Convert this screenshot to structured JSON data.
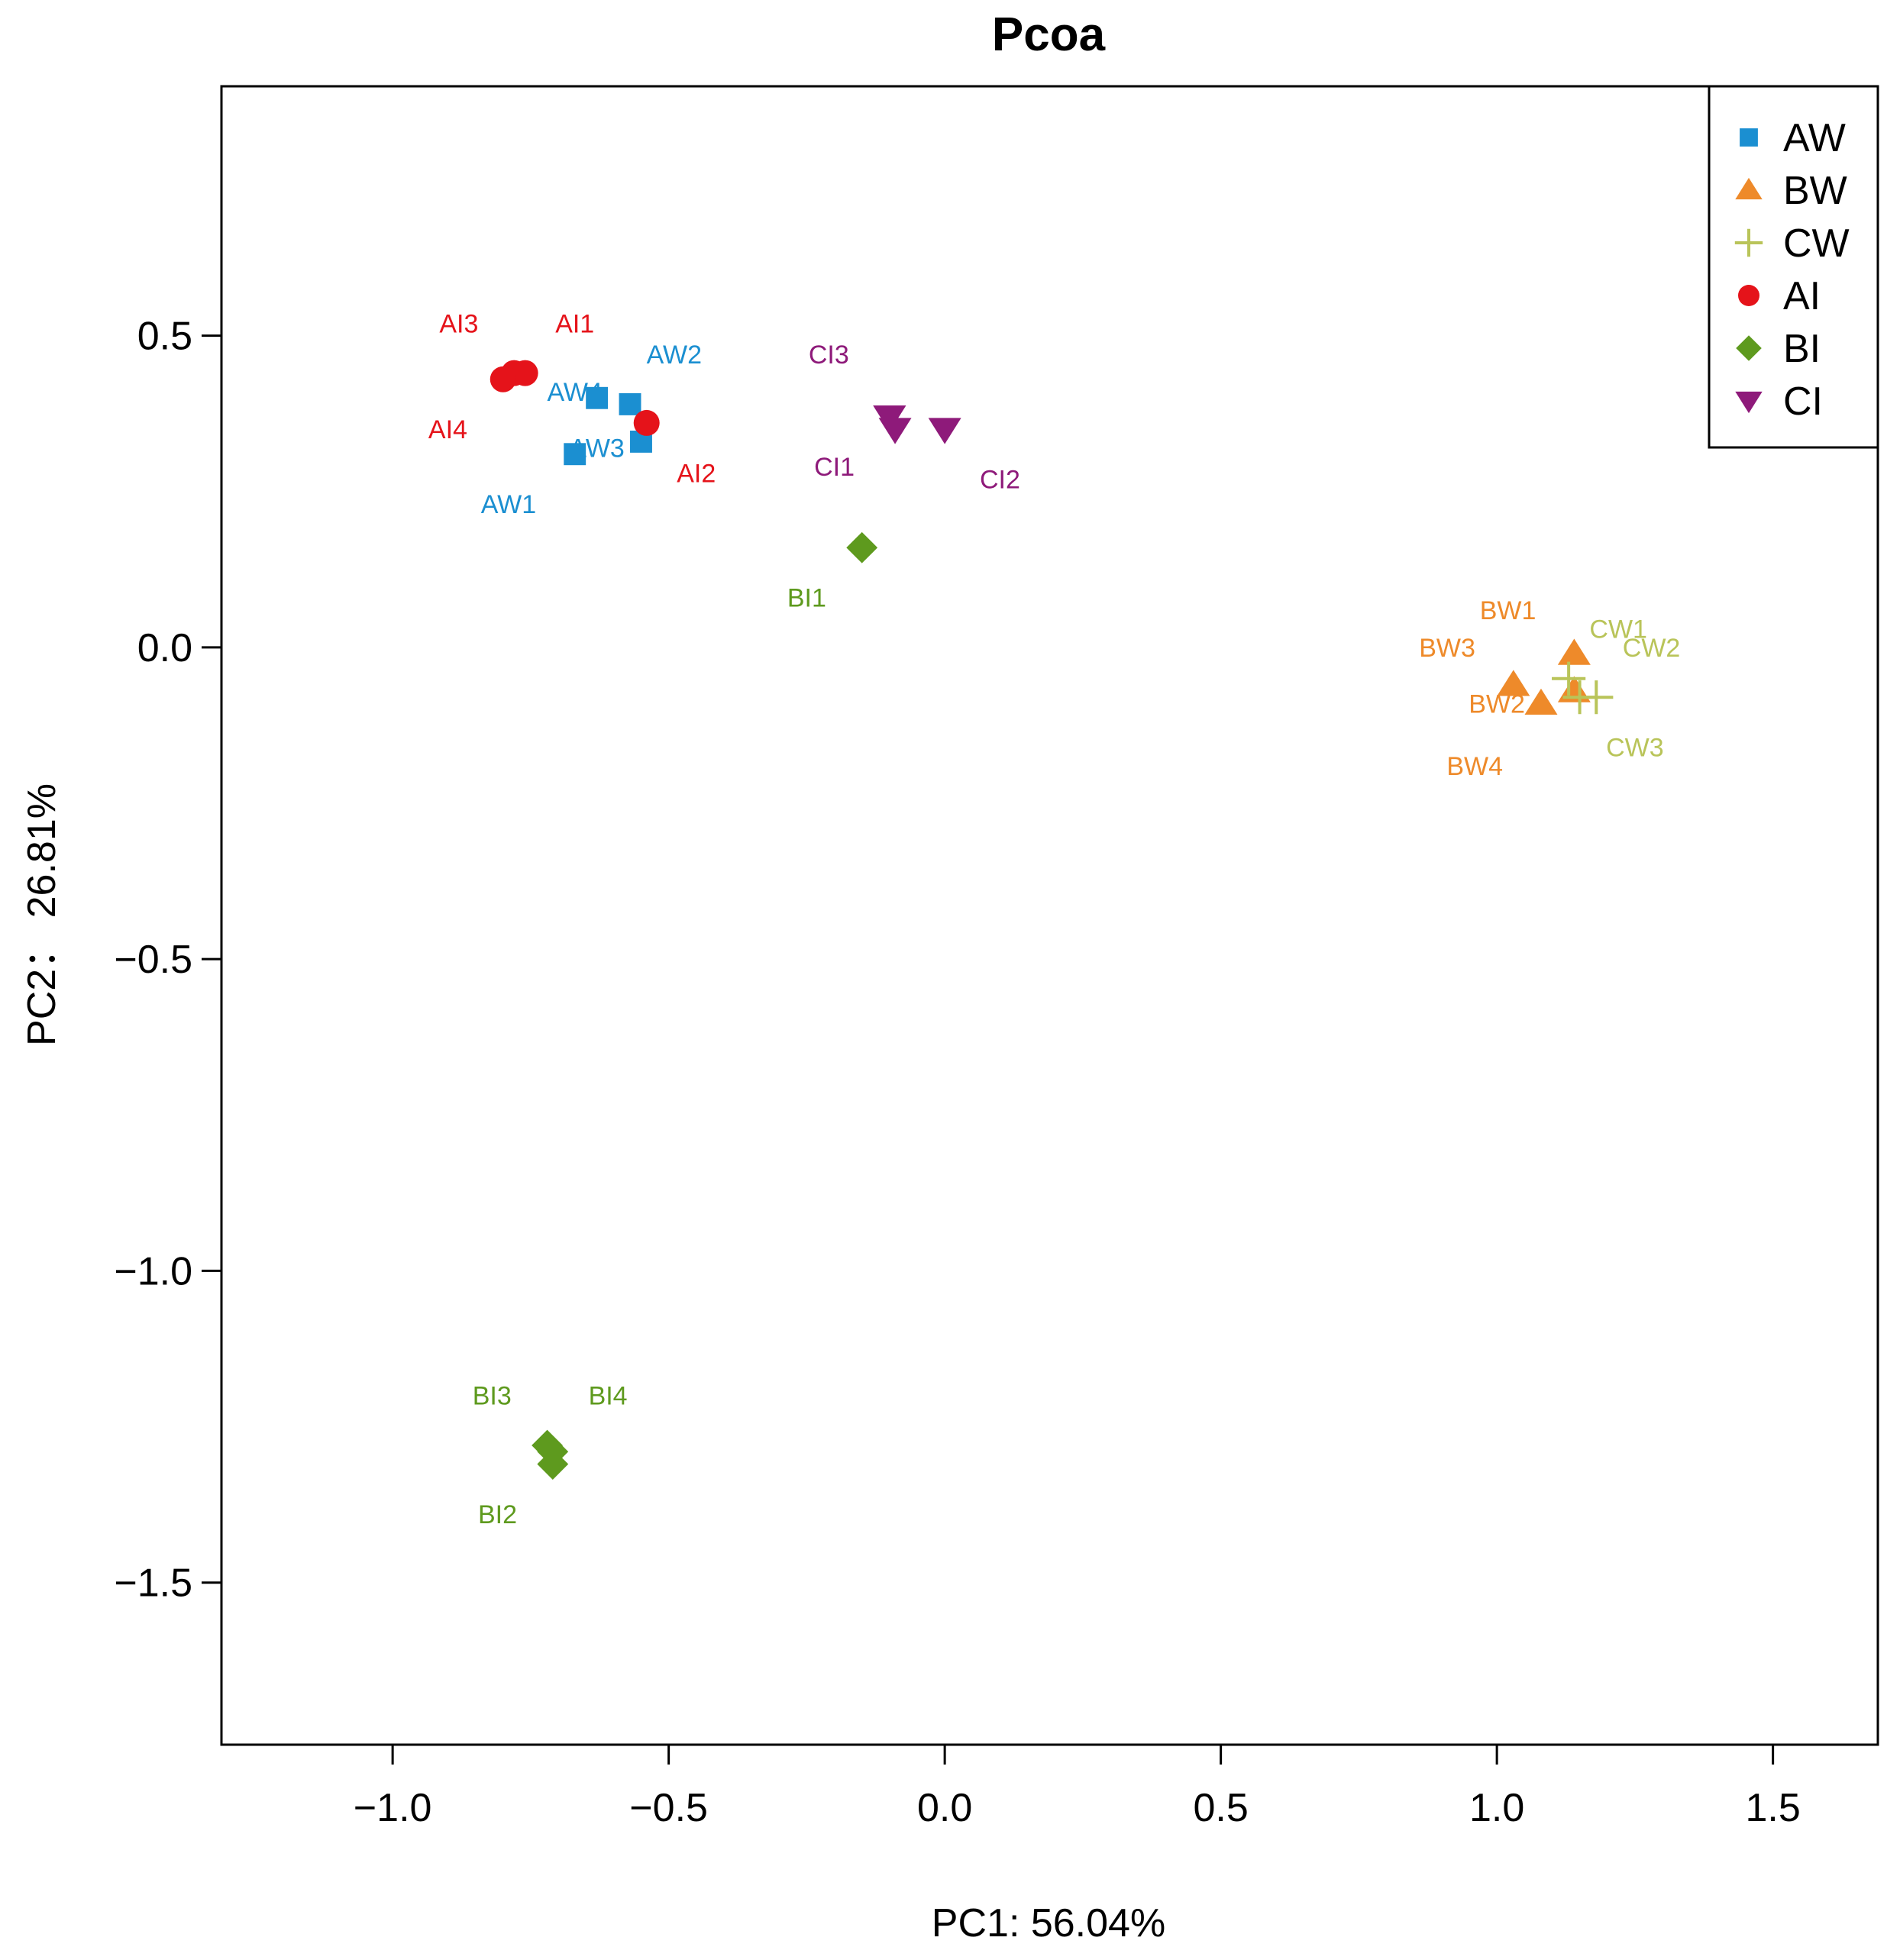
{
  "chart_data": {
    "type": "scatter",
    "title": "Pcoa",
    "xlabel": "PC1: 56.04%",
    "ylabel": "PC2： 26.81%",
    "xlim": [
      -1.31,
      1.69
    ],
    "ylim": [
      -1.76,
      0.9
    ],
    "x_ticks": [
      -1.0,
      -0.5,
      0.0,
      0.5,
      1.0,
      1.5
    ],
    "x_tick_labels": [
      "−1.0",
      "−0.5",
      "0.0",
      "0.5",
      "1.0",
      "1.5"
    ],
    "y_ticks": [
      0.5,
      0.0,
      -0.5,
      -1.0,
      -1.5
    ],
    "y_tick_labels": [
      "0.5",
      "0.0",
      "−0.5",
      "−1.0",
      "−1.5"
    ],
    "grid": false,
    "legend_position": "top-right",
    "series": [
      {
        "name": "AW",
        "color": "#1b8fd1",
        "marker": "square",
        "points": [
          {
            "x": -0.67,
            "y": 0.31,
            "label": "AW1",
            "lx": -0.79,
            "ly": 0.23
          },
          {
            "x": -0.57,
            "y": 0.39,
            "label": "AW2",
            "lx": -0.49,
            "ly": 0.47
          },
          {
            "x": -0.55,
            "y": 0.33,
            "label": "AW3",
            "lx": -0.63,
            "ly": 0.32
          },
          {
            "x": -0.63,
            "y": 0.4,
            "label": "AW4",
            "lx": -0.67,
            "ly": 0.41
          }
        ]
      },
      {
        "name": "BW",
        "color": "#ee8a2a",
        "marker": "triangle-up",
        "points": [
          {
            "x": 1.14,
            "y": -0.01,
            "label": "BW1",
            "lx": 1.02,
            "ly": 0.06
          },
          {
            "x": 1.14,
            "y": -0.07,
            "label": "BW2",
            "lx": 1.0,
            "ly": -0.09
          },
          {
            "x": 1.03,
            "y": -0.06,
            "label": "BW3",
            "lx": 0.91,
            "ly": 0.0
          },
          {
            "x": 1.08,
            "y": -0.09,
            "label": "BW4",
            "lx": 0.96,
            "ly": -0.19
          }
        ]
      },
      {
        "name": "CW",
        "color": "#b9c459",
        "marker": "plus",
        "points": [
          {
            "x": 1.13,
            "y": -0.05,
            "label": "CW1",
            "lx": 1.22,
            "ly": 0.03
          },
          {
            "x": 1.18,
            "y": -0.08,
            "label": "CW2",
            "lx": 1.28,
            "ly": 0.0
          },
          {
            "x": 1.15,
            "y": -0.08,
            "label": "CW3",
            "lx": 1.25,
            "ly": -0.16
          }
        ]
      },
      {
        "name": "AI",
        "color": "#e5131a",
        "marker": "circle",
        "points": [
          {
            "x": -0.78,
            "y": 0.44,
            "label": "AI1",
            "lx": -0.67,
            "ly": 0.52
          },
          {
            "x": -0.54,
            "y": 0.36,
            "label": "AI2",
            "lx": -0.45,
            "ly": 0.28
          },
          {
            "x": -0.76,
            "y": 0.44,
            "label": "AI3",
            "lx": -0.88,
            "ly": 0.52
          },
          {
            "x": -0.8,
            "y": 0.43,
            "label": "AI4",
            "lx": -0.9,
            "ly": 0.35
          }
        ]
      },
      {
        "name": "BI",
        "color": "#5e9a1e",
        "marker": "diamond",
        "points": [
          {
            "x": -0.15,
            "y": 0.16,
            "label": "BI1",
            "lx": -0.25,
            "ly": 0.08
          },
          {
            "x": -0.71,
            "y": -1.31,
            "label": "BI2",
            "lx": -0.81,
            "ly": -1.39
          },
          {
            "x": -0.72,
            "y": -1.28,
            "label": "BI3",
            "lx": -0.82,
            "ly": -1.2
          },
          {
            "x": -0.71,
            "y": -1.29,
            "label": "BI4",
            "lx": -0.61,
            "ly": -1.2
          }
        ]
      },
      {
        "name": "CI",
        "color": "#8e1a7a",
        "marker": "triangle-down",
        "points": [
          {
            "x": -0.1,
            "y": 0.37,
            "label": "CI1",
            "lx": -0.2,
            "ly": 0.29
          },
          {
            "x": 0.0,
            "y": 0.35,
            "label": "CI2",
            "lx": 0.1,
            "ly": 0.27
          },
          {
            "x": -0.1,
            "y": 0.37,
            "label": "CI3",
            "lx": -0.21,
            "ly": 0.47
          },
          {
            "x": -0.09,
            "y": 0.35,
            "label": ""
          }
        ]
      }
    ]
  }
}
